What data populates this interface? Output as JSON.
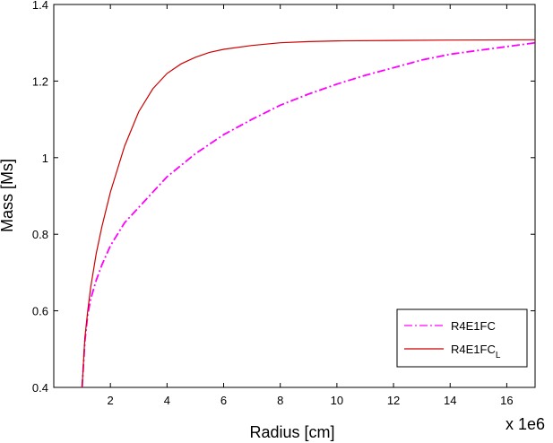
{
  "chart_data": {
    "type": "line",
    "xlabel": "Radius [cm]",
    "ylabel": "Mass [Ms]",
    "x_multiplier_label": "x 1e6",
    "xlim": [
      0,
      17
    ],
    "ylim": [
      0.4,
      1.4
    ],
    "x_ticks": [
      2,
      4,
      6,
      8,
      10,
      12,
      14,
      16
    ],
    "x_tick_labels": [
      "2",
      "4",
      "6",
      "8",
      "10",
      "12",
      "14",
      "16"
    ],
    "y_ticks": [
      0.4,
      0.6,
      0.8,
      1.0,
      1.2,
      1.4
    ],
    "y_tick_labels": [
      "0.4",
      "0.6",
      "0.8",
      "1",
      "1.2",
      "1.4"
    ],
    "grid": false,
    "legend_position": "bottom-right",
    "series": [
      {
        "name": "R4E1FC",
        "color": "#ff00ff",
        "style": "dash-dot",
        "x": [
          1.0,
          1.1,
          1.2,
          1.3,
          1.5,
          1.7,
          2.0,
          2.5,
          3.0,
          3.5,
          4.0,
          5.0,
          6.0,
          7.0,
          8.0,
          9.0,
          10.0,
          11.0,
          12.0,
          13.0,
          14.0,
          15.0,
          16.0,
          17.0
        ],
        "y": [
          0.4,
          0.52,
          0.59,
          0.63,
          0.68,
          0.72,
          0.77,
          0.83,
          0.87,
          0.91,
          0.95,
          1.01,
          1.06,
          1.1,
          1.137,
          1.166,
          1.192,
          1.215,
          1.235,
          1.255,
          1.27,
          1.28,
          1.29,
          1.3
        ]
      },
      {
        "name": "R4E1FC",
        "name_subscript": "L",
        "color": "#cc0000",
        "style": "solid",
        "x": [
          1.0,
          1.1,
          1.2,
          1.3,
          1.5,
          1.7,
          2.0,
          2.5,
          3.0,
          3.5,
          4.0,
          4.5,
          5.0,
          5.5,
          6.0,
          7.0,
          8.0,
          9.0,
          10.0,
          12.0,
          14.0,
          17.0
        ],
        "y": [
          0.4,
          0.53,
          0.6,
          0.66,
          0.75,
          0.82,
          0.91,
          1.03,
          1.12,
          1.18,
          1.22,
          1.245,
          1.262,
          1.275,
          1.283,
          1.293,
          1.3,
          1.303,
          1.305,
          1.306,
          1.307,
          1.308
        ]
      }
    ]
  }
}
